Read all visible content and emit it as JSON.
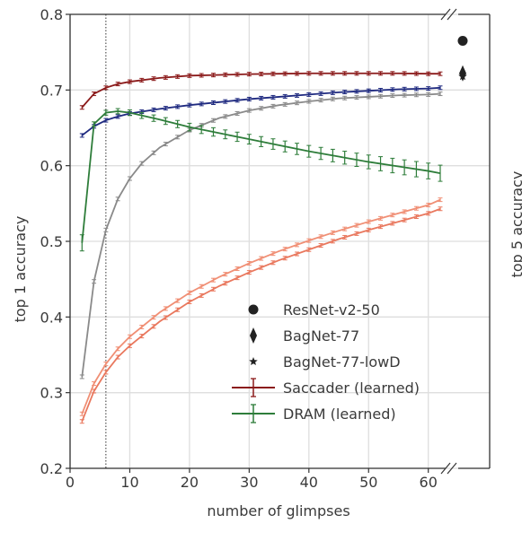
{
  "chart_data": {
    "type": "line",
    "xlabel": "number of glimpses",
    "ylabel": "top 1 accuracy",
    "right_panel_ylabel_fragment": "top 5 accuracy",
    "xlim": [
      0,
      62
    ],
    "ylim": [
      0.2,
      0.8
    ],
    "x_ticks": [
      "0",
      "10",
      "20",
      "30",
      "40",
      "50",
      "60"
    ],
    "y_ticks": [
      "0.2",
      "0.3",
      "0.4",
      "0.5",
      "0.6",
      "0.7",
      "0.8"
    ],
    "grid": true,
    "vertical_reference_line_x": 6,
    "legend_position": "lower-right",
    "legend": [
      {
        "label": "ResNet-v2-50",
        "marker": "circle",
        "color": "#222222"
      },
      {
        "label": "BagNet-77",
        "marker": "diamond",
        "color": "#222222"
      },
      {
        "label": "BagNet-77-lowD",
        "marker": "star",
        "color": "#222222"
      },
      {
        "label": "Saccader (learned)",
        "marker": "errorbar",
        "color": "#8b1a1a"
      },
      {
        "label": "DRAM (learned)",
        "marker": "errorbar",
        "color": "#2e7d3a"
      }
    ],
    "reference_points": [
      {
        "label": "ResNet-v2-50",
        "y": 0.765
      },
      {
        "label": "BagNet-77",
        "y": 0.722
      },
      {
        "label": "BagNet-77-lowD",
        "y": 0.718
      }
    ],
    "series": [
      {
        "name": "Saccader (learned)",
        "color": "#8b1a1a",
        "x": [
          2,
          4,
          6,
          8,
          10,
          15,
          20,
          25,
          30,
          35,
          40,
          45,
          50,
          55,
          60,
          62
        ],
        "y": [
          0.677,
          0.695,
          0.703,
          0.708,
          0.711,
          0.716,
          0.719,
          0.72,
          0.721,
          0.7215,
          0.722,
          0.722,
          0.722,
          0.722,
          0.7215,
          0.7215
        ]
      },
      {
        "color": "#1f2a80",
        "x": [
          2,
          4,
          6,
          8,
          10,
          15,
          20,
          25,
          30,
          35,
          40,
          45,
          50,
          55,
          60,
          62
        ],
        "y": [
          0.64,
          0.652,
          0.66,
          0.665,
          0.669,
          0.675,
          0.68,
          0.684,
          0.688,
          0.691,
          0.694,
          0.697,
          0.699,
          0.701,
          0.702,
          0.703
        ]
      },
      {
        "color": "#8a8a8a",
        "x": [
          2,
          4,
          6,
          8,
          10,
          12,
          15,
          20,
          25,
          30,
          35,
          40,
          45,
          50,
          55,
          60,
          62
        ],
        "y": [
          0.321,
          0.447,
          0.515,
          0.556,
          0.583,
          0.603,
          0.624,
          0.647,
          0.663,
          0.673,
          0.68,
          0.685,
          0.689,
          0.691,
          0.693,
          0.694,
          0.695
        ]
      },
      {
        "name": "DRAM (learned)",
        "color": "#2e7d3a",
        "x": [
          2,
          4,
          6,
          8,
          10,
          15,
          20,
          25,
          30,
          35,
          40,
          45,
          50,
          55,
          60,
          62
        ],
        "y": [
          0.498,
          0.655,
          0.67,
          0.672,
          0.67,
          0.661,
          0.651,
          0.643,
          0.635,
          0.627,
          0.619,
          0.612,
          0.605,
          0.599,
          0.593,
          0.59
        ]
      },
      {
        "color": "#f08f75",
        "x": [
          2,
          4,
          6,
          8,
          10,
          15,
          20,
          25,
          30,
          35,
          40,
          45,
          50,
          55,
          60,
          62
        ],
        "y": [
          0.272,
          0.312,
          0.338,
          0.358,
          0.374,
          0.406,
          0.432,
          0.453,
          0.471,
          0.487,
          0.501,
          0.514,
          0.526,
          0.537,
          0.548,
          0.555
        ]
      },
      {
        "color": "#e9785e",
        "x": [
          2,
          4,
          6,
          8,
          10,
          15,
          20,
          25,
          30,
          35,
          40,
          45,
          50,
          55,
          60,
          62
        ],
        "y": [
          0.262,
          0.302,
          0.327,
          0.347,
          0.362,
          0.394,
          0.42,
          0.441,
          0.459,
          0.475,
          0.489,
          0.503,
          0.515,
          0.526,
          0.537,
          0.543
        ]
      }
    ]
  }
}
